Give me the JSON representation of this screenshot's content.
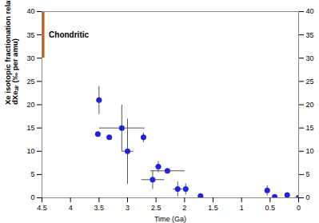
{
  "chart_data": {
    "type": "scatter",
    "xlabel": "Time (Ga)",
    "ylabel": "Xe isotopic fractionation relative to modern air, dXeₐᵢᵣ (‰ per amu)",
    "x": [
      3.52,
      3.5,
      3.32,
      3.1,
      3.0,
      2.72,
      2.56,
      2.46,
      2.3,
      2.12,
      1.98,
      1.72,
      0.55,
      0.42,
      0.2,
      0
    ],
    "values": [
      13.7,
      21,
      13,
      15,
      10,
      13,
      3.9,
      6.7,
      5.8,
      1.9,
      1.9,
      0.4,
      1.6,
      0.2,
      0.6,
      0
    ],
    "x_error": [
      null,
      0.05,
      null,
      0.4,
      0.1,
      0.03,
      0.2,
      0.05,
      0.3,
      0.08,
      0.05,
      null,
      null,
      null,
      null,
      null
    ],
    "y_error": [
      null,
      3,
      null,
      5,
      7,
      1,
      2,
      1.2,
      null,
      1.6,
      1.2,
      null,
      1.1,
      null,
      null,
      null
    ],
    "color": "#2222dd",
    "marker": "circle",
    "xlim": [
      4.5,
      0
    ],
    "ylim": [
      0,
      40
    ],
    "xticks": [
      4.5,
      4,
      3.5,
      3,
      2.5,
      2,
      1.5,
      1,
      0.5,
      0
    ],
    "yticks": [
      0,
      5,
      10,
      15,
      20,
      25,
      30,
      35,
      40
    ],
    "annotations": [
      {
        "text": "Chondritic",
        "x": [
          4.5,
          4.45
        ],
        "y": [
          30,
          40
        ],
        "color": "#c8601c"
      }
    ]
  }
}
